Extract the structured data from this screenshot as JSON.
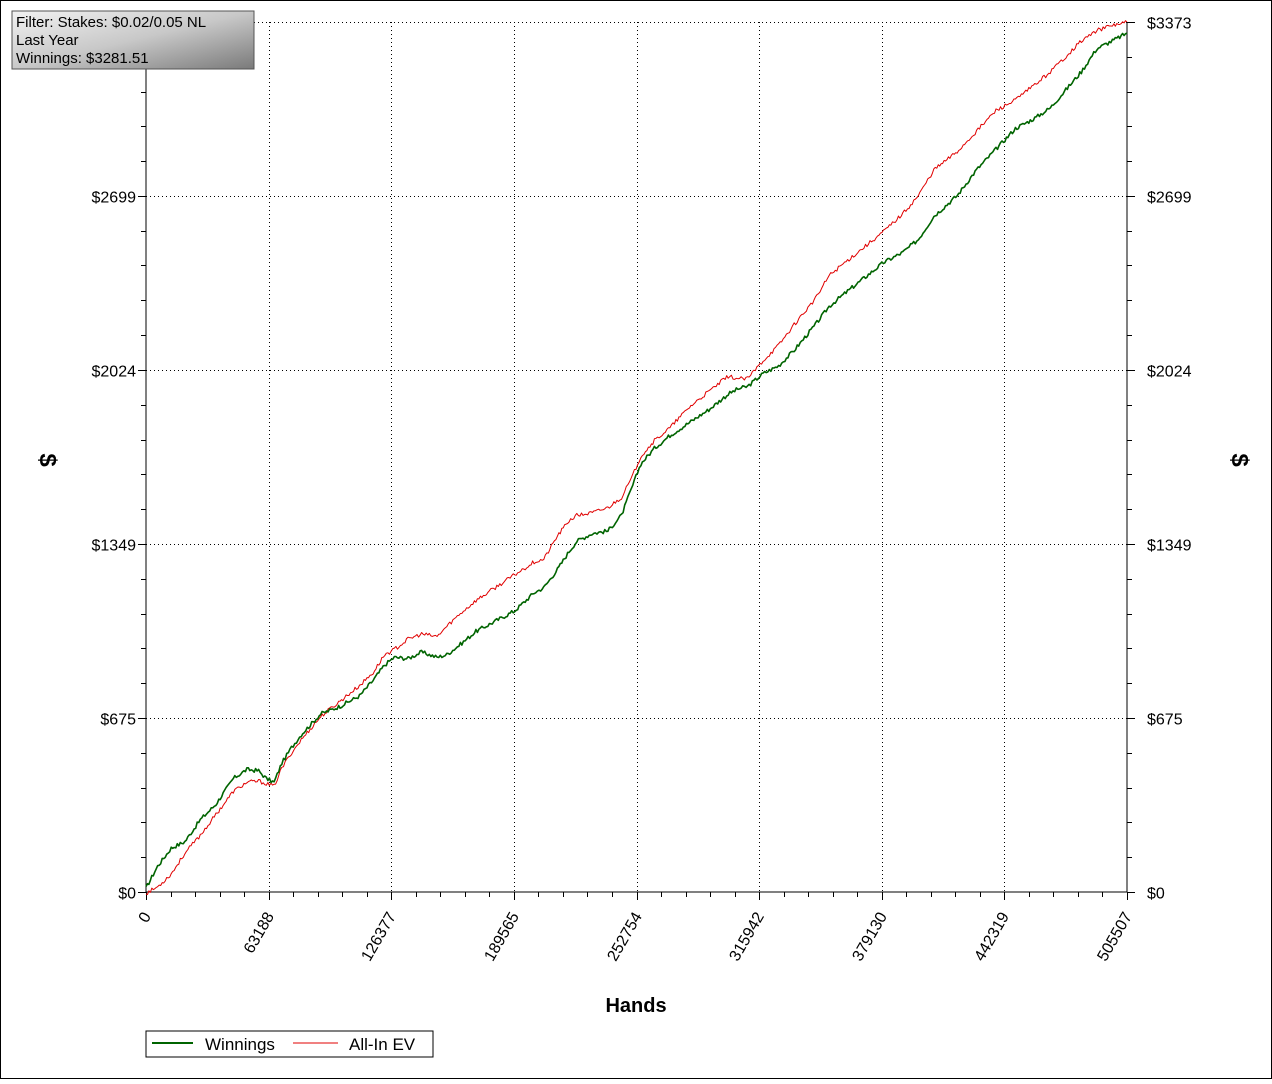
{
  "info_box": {
    "filter": "Filter: Stakes: $0.02/0.05 NL",
    "period": "Last Year",
    "winnings": "Winnings: $3281.51"
  },
  "legend": {
    "items": [
      {
        "label": "Winnings",
        "color": "#006400"
      },
      {
        "label": "All-In EV",
        "color": "#e00000"
      }
    ]
  },
  "chart_data": {
    "type": "line",
    "xlabel": "Hands",
    "ylabel_left": "$",
    "ylabel_right": "$",
    "xlim": [
      0,
      505507
    ],
    "ylim": [
      0,
      3373
    ],
    "x_ticks": [
      0,
      63188,
      126377,
      189565,
      252754,
      315942,
      379130,
      442319,
      505507
    ],
    "x_tick_labels": [
      "0",
      "63188",
      "126377",
      "189565",
      "252754",
      "315942",
      "379130",
      "442319",
      "505507"
    ],
    "y_ticks": [
      0,
      675,
      1349,
      2024,
      2699,
      3373
    ],
    "y_tick_labels": [
      "$0",
      "$675",
      "$1349",
      "$2024",
      "$2699",
      "$3373"
    ],
    "grid": true,
    "legend_position": "bottom-left",
    "series": [
      {
        "name": "Winnings",
        "color": "#006400",
        "points": [
          [
            0,
            15
          ],
          [
            6000,
            100
          ],
          [
            13000,
            170
          ],
          [
            20000,
            195
          ],
          [
            28000,
            280
          ],
          [
            36000,
            340
          ],
          [
            45000,
            440
          ],
          [
            52000,
            475
          ],
          [
            58000,
            470
          ],
          [
            62000,
            440
          ],
          [
            66000,
            425
          ],
          [
            70000,
            500
          ],
          [
            75000,
            560
          ],
          [
            80000,
            610
          ],
          [
            90000,
            690
          ],
          [
            100000,
            720
          ],
          [
            110000,
            760
          ],
          [
            117000,
            820
          ],
          [
            123000,
            880
          ],
          [
            128000,
            910
          ],
          [
            135000,
            905
          ],
          [
            142000,
            930
          ],
          [
            150000,
            910
          ],
          [
            155000,
            920
          ],
          [
            162000,
            960
          ],
          [
            170000,
            1010
          ],
          [
            180000,
            1050
          ],
          [
            190000,
            1090
          ],
          [
            200000,
            1160
          ],
          [
            205000,
            1180
          ],
          [
            212000,
            1250
          ],
          [
            218000,
            1320
          ],
          [
            222000,
            1360
          ],
          [
            230000,
            1390
          ],
          [
            238000,
            1400
          ],
          [
            245000,
            1460
          ],
          [
            250000,
            1560
          ],
          [
            255000,
            1660
          ],
          [
            262000,
            1720
          ],
          [
            270000,
            1770
          ],
          [
            280000,
            1820
          ],
          [
            290000,
            1870
          ],
          [
            300000,
            1930
          ],
          [
            305000,
            1950
          ],
          [
            310000,
            1960
          ],
          [
            318000,
            2010
          ],
          [
            326000,
            2040
          ],
          [
            334000,
            2100
          ],
          [
            345000,
            2200
          ],
          [
            352000,
            2270
          ],
          [
            360000,
            2320
          ],
          [
            370000,
            2380
          ],
          [
            380000,
            2440
          ],
          [
            390000,
            2480
          ],
          [
            398000,
            2530
          ],
          [
            406000,
            2620
          ],
          [
            418000,
            2700
          ],
          [
            428000,
            2800
          ],
          [
            438000,
            2880
          ],
          [
            448000,
            2960
          ],
          [
            458000,
            3000
          ],
          [
            466000,
            3040
          ],
          [
            474000,
            3110
          ],
          [
            482000,
            3180
          ],
          [
            490000,
            3270
          ],
          [
            498000,
            3300
          ],
          [
            505507,
            3330
          ]
        ]
      },
      {
        "name": "All-In EV",
        "color": "#e00000",
        "points": [
          [
            0,
            -5
          ],
          [
            6000,
            20
          ],
          [
            13000,
            70
          ],
          [
            20000,
            150
          ],
          [
            28000,
            220
          ],
          [
            36000,
            300
          ],
          [
            45000,
            390
          ],
          [
            52000,
            425
          ],
          [
            58000,
            430
          ],
          [
            62000,
            420
          ],
          [
            66000,
            410
          ],
          [
            70000,
            480
          ],
          [
            75000,
            540
          ],
          [
            80000,
            590
          ],
          [
            90000,
            680
          ],
          [
            100000,
            740
          ],
          [
            110000,
            800
          ],
          [
            117000,
            850
          ],
          [
            123000,
            920
          ],
          [
            128000,
            940
          ],
          [
            135000,
            980
          ],
          [
            142000,
            1000
          ],
          [
            150000,
            990
          ],
          [
            155000,
            1030
          ],
          [
            162000,
            1080
          ],
          [
            170000,
            1130
          ],
          [
            180000,
            1180
          ],
          [
            190000,
            1230
          ],
          [
            200000,
            1280
          ],
          [
            205000,
            1290
          ],
          [
            212000,
            1380
          ],
          [
            218000,
            1440
          ],
          [
            222000,
            1460
          ],
          [
            230000,
            1470
          ],
          [
            238000,
            1490
          ],
          [
            245000,
            1530
          ],
          [
            250000,
            1600
          ],
          [
            255000,
            1690
          ],
          [
            262000,
            1750
          ],
          [
            270000,
            1800
          ],
          [
            280000,
            1880
          ],
          [
            290000,
            1940
          ],
          [
            300000,
            2000
          ],
          [
            305000,
            1990
          ],
          [
            310000,
            1990
          ],
          [
            318000,
            2060
          ],
          [
            326000,
            2120
          ],
          [
            334000,
            2200
          ],
          [
            345000,
            2300
          ],
          [
            352000,
            2390
          ],
          [
            360000,
            2440
          ],
          [
            370000,
            2500
          ],
          [
            380000,
            2560
          ],
          [
            390000,
            2630
          ],
          [
            398000,
            2700
          ],
          [
            406000,
            2800
          ],
          [
            418000,
            2870
          ],
          [
            428000,
            2950
          ],
          [
            438000,
            3030
          ],
          [
            448000,
            3070
          ],
          [
            458000,
            3130
          ],
          [
            466000,
            3180
          ],
          [
            474000,
            3240
          ],
          [
            482000,
            3300
          ],
          [
            490000,
            3340
          ],
          [
            498000,
            3360
          ],
          [
            505507,
            3373
          ]
        ]
      }
    ]
  }
}
